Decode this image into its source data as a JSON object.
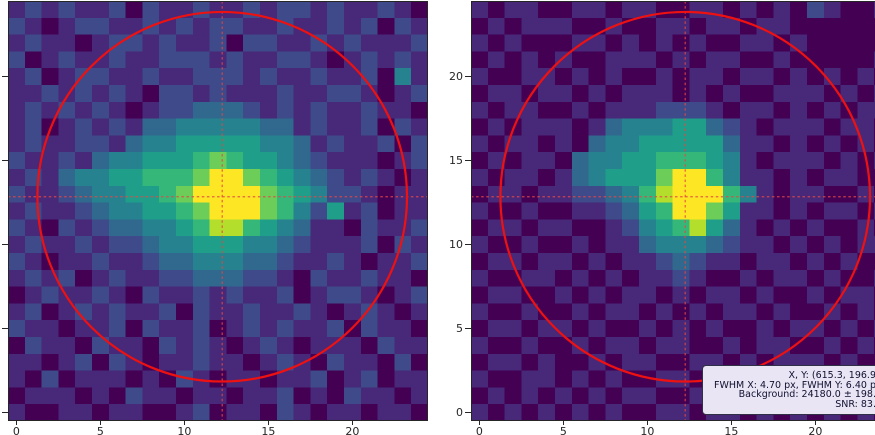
{
  "colors": {
    "figure_bg": "#ffffff",
    "spine": "#262626",
    "tick_label": "#262626",
    "aperture_circle": "#ee1111",
    "crosshair": "#e54747",
    "tooltip_bg": "#e9e5f4",
    "tooltip_border": "#2f2f45",
    "tooltip_text": "#101030",
    "viridis_levels": [
      "#440154",
      "#482878",
      "#3e4a89",
      "#31688e",
      "#26828e",
      "#1f9e89",
      "#35b779",
      "#6dcd59",
      "#b4de2c",
      "#fde725"
    ]
  },
  "tooltip": {
    "lines": [
      "X, Y: (615.3, 196.9",
      "FWHM X: 4.70 px, FWHM Y: 6.40 p",
      "Background: 24180.0 ± 198.",
      "SNR: 83."
    ]
  },
  "chart_data": [
    {
      "type": "heatmap",
      "name": "star-cutout-left",
      "title": "",
      "colormap": "viridis",
      "value_scale": "levels 0-9 map to viridis t=v/10",
      "x_tick_values": [
        0,
        5,
        10,
        15,
        20
      ],
      "x_tick_labels": [
        "0",
        "5",
        "10",
        "15",
        "20"
      ],
      "y_tick_values": [
        0,
        5,
        10,
        15,
        20
      ],
      "y_tick_labels": [],
      "x_range": [
        -0.5,
        24.5
      ],
      "y_range": [
        -0.5,
        24.5
      ],
      "grid": false,
      "rows_top_to_bottom": [
        "1212112021121121221211210",
        "2101221121212211211212021",
        "1211012212112022112121112",
        "2012112112221211221012121",
        "1201221121122212112112041",
        "1121212102212111211221012",
        "1212121012233321212112110",
        "1201212133444443312112021",
        "1211221344555554431211202",
        "2112134455567655432111012",
        "1213445566679976543212101",
        "2112344556799997654221011",
        "1211234455679997642512011",
        "2102123344568865431102112",
        "1211212234455544321112021",
        "2101121123344433211210112",
        "1212012112233322102112110",
        "0121121021121211201221012",
        "1201212112021121121012101",
        "2110112021120121211202110",
        "0211021102121012101110211",
        "1101202101121101210211020",
        "1020111010210110112012011",
        "0111010211011011201021101",
        "1001101100120110210110110"
      ],
      "overlays": {
        "aperture_circle": {
          "x": 12.25,
          "y": 12.85,
          "radius": 11.0
        },
        "crosshair": {
          "x": 12.25,
          "y": 12.85,
          "style": "dashed"
        }
      }
    },
    {
      "type": "heatmap",
      "name": "star-cutout-right",
      "title": "",
      "colormap": "viridis",
      "value_scale": "levels 0-9 map to viridis t=v/10",
      "x_tick_values": [
        0,
        5,
        10,
        15,
        20
      ],
      "x_tick_labels": [
        "0",
        "5",
        "10",
        "15",
        "20"
      ],
      "y_tick_values": [
        0,
        5,
        10,
        15,
        20
      ],
      "y_tick_labels": [
        "0",
        "5",
        "10",
        "15",
        "20"
      ],
      "x_range": [
        -0.5,
        24.5
      ],
      "y_range": [
        -0.5,
        24.5
      ],
      "grid": false,
      "rows_top_to_bottom": [
        "1011001101100110101021001",
        "0101110010011011011000000",
        "1010001101010100110100000",
        "0101010011101011001000001",
        "1001101010010110110101010",
        "0110110101110101001110101",
        "1011001011122210110101011",
        "0101110134445532101110110",
        "1011010344555553110101010",
        "0101103445566654101110101",
        "1011013455579964110101100",
        "0110112234689996410110010",
        "1001001123569975110101101",
        "0110110012456853101010010",
        "1001001011344432110101011",
        "0110110101123211011010100",
        "1001101010112100101101001",
        "0110010101101011010010110",
        "1001001011010101101001010",
        "0110110100101010010110101",
        "1001001011011001011001010",
        "0110100101100110101110100",
        "1001101010011011010001011",
        "0101010101100100101110101",
        "1010101010011011010101010"
      ],
      "overlays": {
        "aperture_circle": {
          "x": 12.25,
          "y": 12.85,
          "radius": 11.0
        },
        "crosshair": {
          "x": 12.25,
          "y": 12.85,
          "style": "dashed"
        }
      }
    }
  ]
}
